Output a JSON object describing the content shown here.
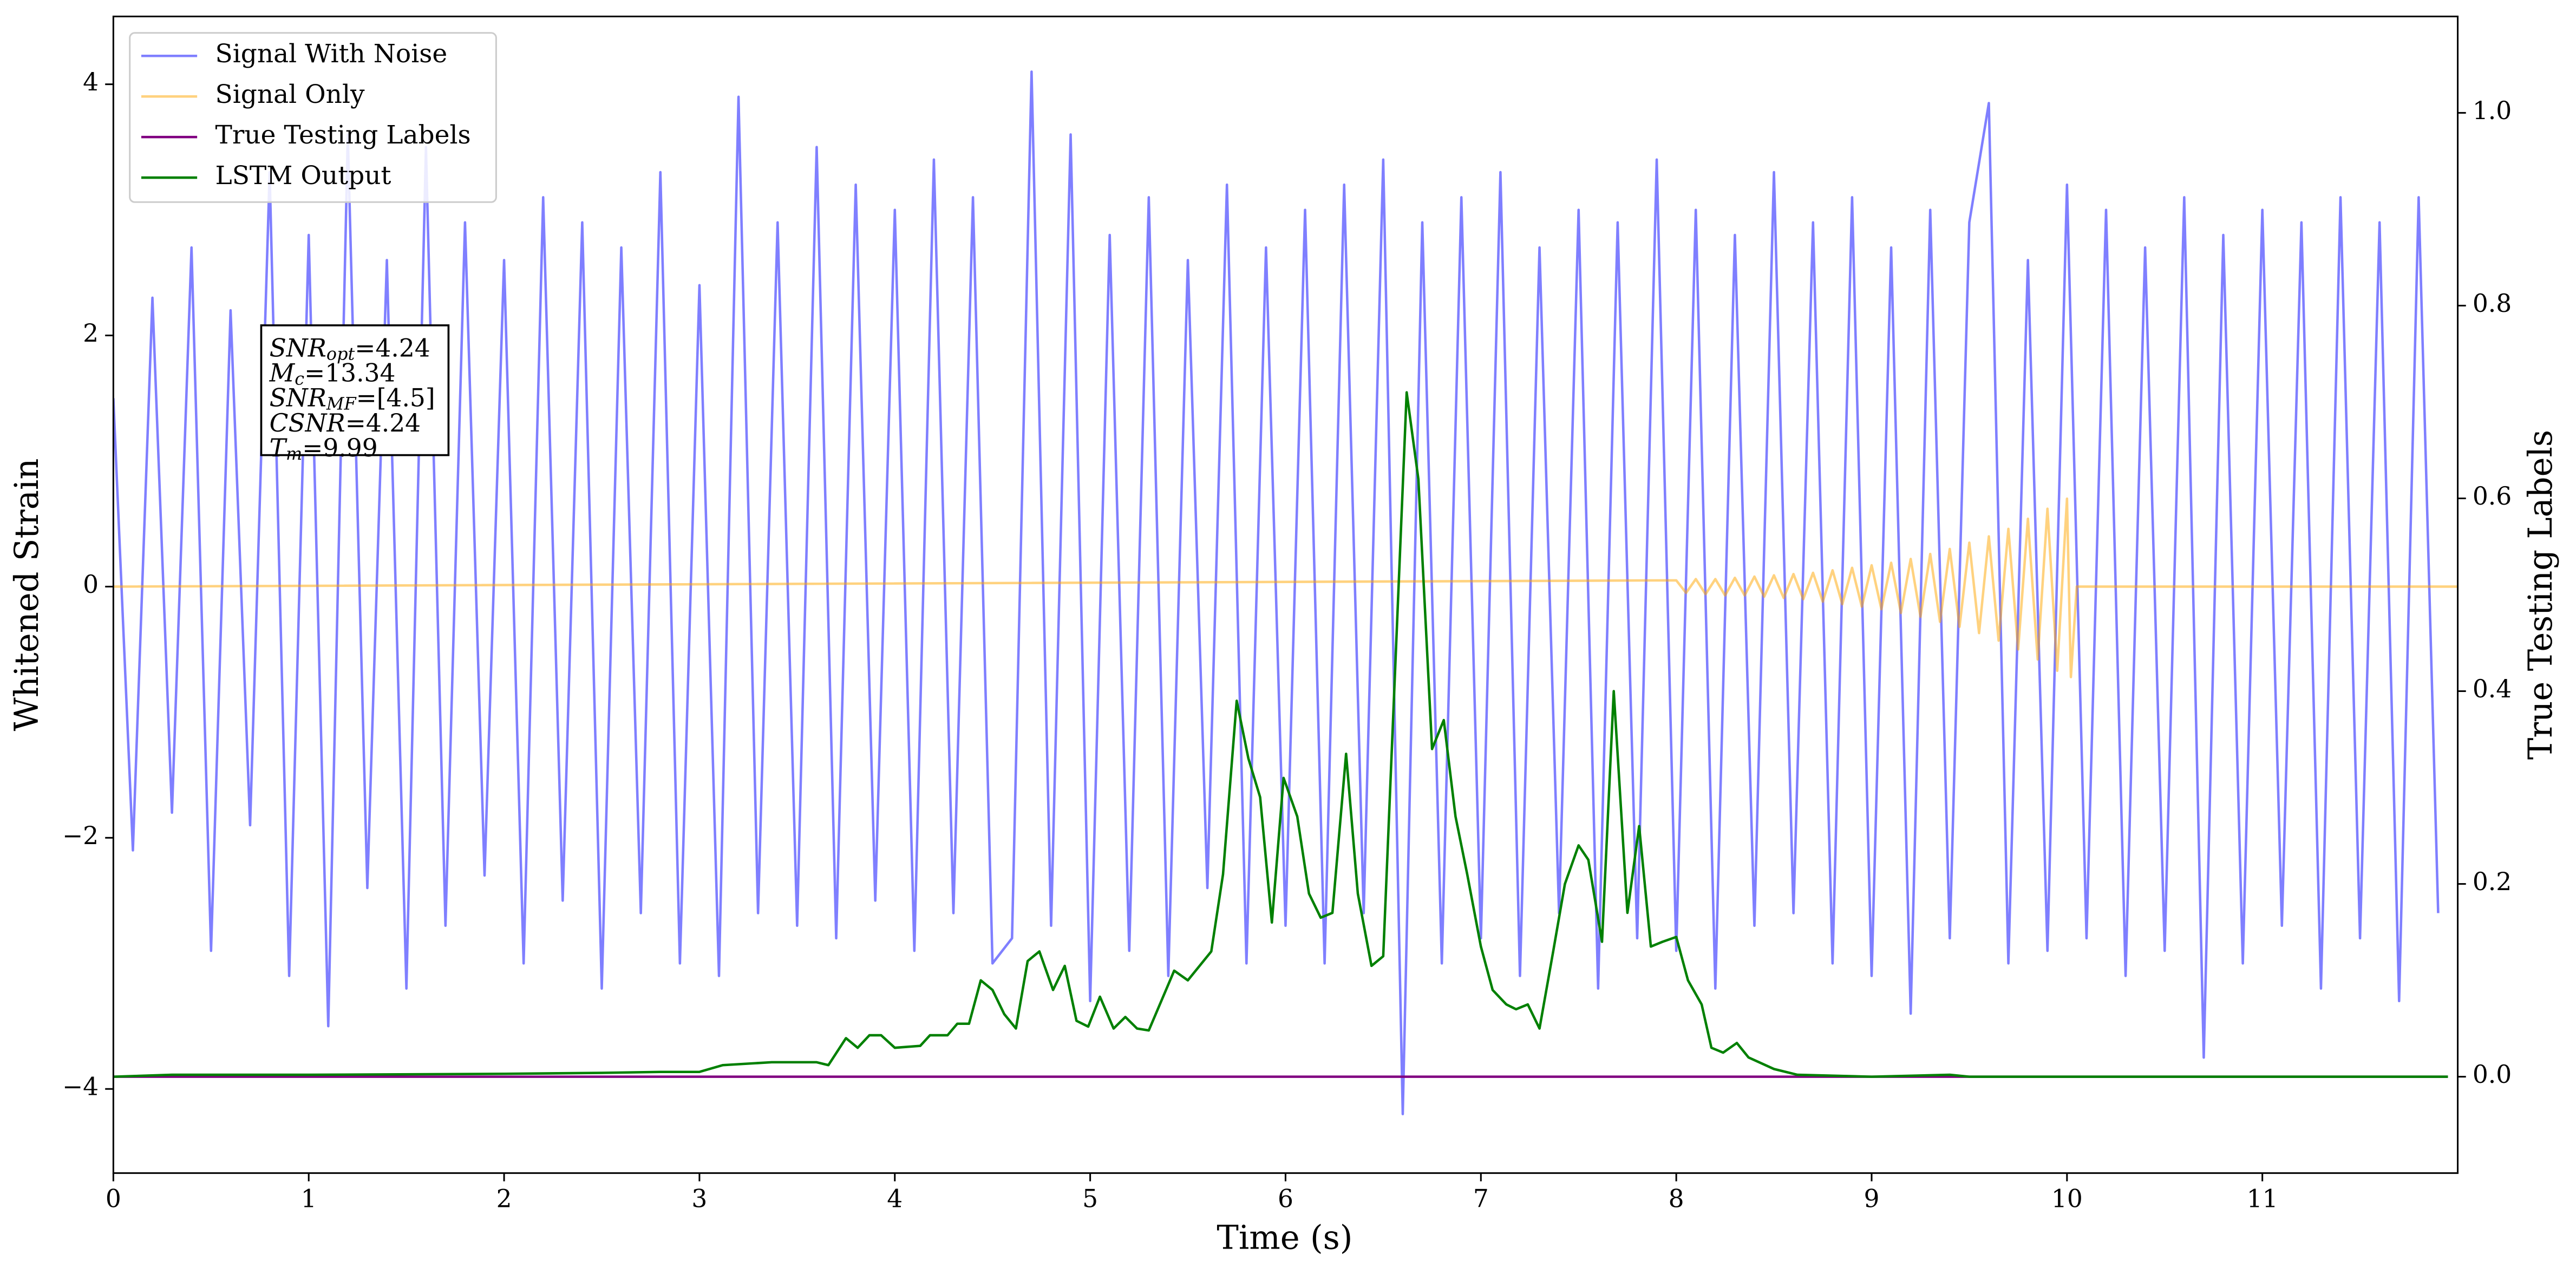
{
  "chart_data": {
    "type": "line",
    "xlabel": "Time (s)",
    "ylabel": "Whitened Strain",
    "y2label": "True Testing Labels",
    "xlim": [
      0,
      12
    ],
    "ylim": [
      -4.67,
      4.54
    ],
    "y2lim": [
      -0.1,
      1.1
    ],
    "xticks": [
      0,
      1,
      2,
      3,
      4,
      5,
      6,
      7,
      8,
      9,
      10,
      11
    ],
    "yticks": [
      {
        "value": -4,
        "label": "−4"
      },
      {
        "value": -2,
        "label": "−2"
      },
      0,
      2,
      4
    ],
    "y2ticks": [
      {
        "value": 0,
        "label": "0.0"
      },
      {
        "value": 0.2,
        "label": "0.2"
      },
      {
        "value": 0.4,
        "label": "0.4"
      },
      {
        "value": 0.6,
        "label": "0.6"
      },
      {
        "value": 0.8,
        "label": "0.8"
      },
      {
        "value": 1.0,
        "label": "1.0"
      }
    ],
    "legend": "upper left",
    "annotation": [
      {
        "symbol": "SNR",
        "sub": "opt",
        "text": "=4.24"
      },
      {
        "symbol": "M",
        "sub": "c",
        "text": "=13.34"
      },
      {
        "symbol": "SNR",
        "sub": "MF",
        "text": "=[4.5]"
      },
      {
        "symbol": "CSNR",
        "text": "=4.24"
      },
      {
        "symbol": "T",
        "sub": "m",
        "text": "=9.99"
      }
    ],
    "series": [
      {
        "name": "Signal With Noise",
        "color": "#0000ff",
        "alpha": 0.5,
        "x": [
          0.0,
          0.1,
          0.2,
          0.3,
          0.4,
          0.5,
          0.6,
          0.7,
          0.8,
          0.9,
          1.0,
          1.1,
          1.2,
          1.3,
          1.4,
          1.5,
          1.6,
          1.7,
          1.8,
          1.9,
          2.0,
          2.1,
          2.2,
          2.3,
          2.4,
          2.5,
          2.6,
          2.7,
          2.8,
          2.9,
          3.0,
          3.1,
          3.2,
          3.3,
          3.4,
          3.5,
          3.6,
          3.7,
          3.8,
          3.9,
          4.0,
          4.1,
          4.2,
          4.3,
          4.4,
          4.5,
          4.6,
          4.7,
          4.8,
          4.9,
          5.0,
          5.1,
          5.2,
          5.3,
          5.4,
          5.5,
          5.6,
          5.7,
          5.8,
          5.9,
          6.0,
          6.1,
          6.2,
          6.3,
          6.4,
          6.5,
          6.6,
          6.7,
          6.8,
          6.9,
          7.0,
          7.1,
          7.2,
          7.3,
          7.4,
          7.5,
          7.6,
          7.7,
          7.8,
          7.9,
          8.0,
          8.1,
          8.2,
          8.3,
          8.4,
          8.5,
          8.6,
          8.7,
          8.8,
          8.9,
          9.0,
          9.1,
          9.2,
          9.3,
          9.4,
          9.5,
          9.6,
          9.7,
          9.8,
          9.9,
          10.0,
          10.1,
          10.2,
          10.3,
          10.4,
          10.5,
          10.6,
          10.7,
          10.8,
          10.9,
          11.0,
          11.1,
          11.2,
          11.3,
          11.4,
          11.5,
          11.6,
          11.7,
          11.8,
          11.9
        ],
        "values": [
          1.5,
          -2.1,
          2.3,
          -1.8,
          2.7,
          -2.9,
          2.2,
          -1.9,
          3.3,
          -3.1,
          2.8,
          -3.5,
          3.6,
          -2.4,
          2.6,
          -3.2,
          3.5,
          -2.7,
          2.9,
          -2.3,
          2.6,
          -3.0,
          3.1,
          -2.5,
          2.9,
          -3.2,
          2.7,
          -2.6,
          3.3,
          -3.0,
          2.4,
          -3.1,
          3.9,
          -2.6,
          2.9,
          -2.7,
          3.5,
          -2.8,
          3.2,
          -2.5,
          3.0,
          -2.9,
          3.4,
          -2.6,
          3.1,
          -3.0,
          -2.8,
          4.1,
          -2.7,
          3.6,
          -3.3,
          2.8,
          -2.9,
          3.1,
          -3.1,
          2.6,
          -2.4,
          3.2,
          -3.0,
          2.7,
          -2.7,
          3.0,
          -3.0,
          3.2,
          -2.6,
          3.4,
          -4.2,
          2.9,
          -3.0,
          3.1,
          -2.8,
          3.3,
          -3.1,
          2.7,
          -2.6,
          3.0,
          -3.2,
          2.9,
          -2.8,
          3.4,
          -2.9,
          3.0,
          -3.2,
          2.8,
          -2.7,
          3.3,
          -2.6,
          2.9,
          -3.0,
          3.1,
          -3.1,
          2.7,
          -3.4,
          3.0,
          -2.8,
          2.9,
          3.85,
          -3.0,
          2.6,
          -2.9,
          3.2,
          -2.8,
          3.0,
          -3.1,
          2.7,
          -2.9,
          3.1,
          -3.75,
          2.8,
          -3.0,
          3.0,
          -2.7,
          2.9,
          -3.2,
          3.1,
          -2.8,
          2.9,
          -3.3,
          3.1,
          -2.6
        ]
      },
      {
        "name": "Signal Only",
        "color": "#ffa500",
        "alpha": 0.5,
        "x": [
          0,
          8.0,
          8.05,
          8.1,
          8.15,
          8.2,
          8.25,
          8.3,
          8.35,
          8.4,
          8.45,
          8.5,
          8.55,
          8.6,
          8.65,
          8.7,
          8.75,
          8.8,
          8.85,
          8.9,
          8.95,
          9.0,
          9.05,
          9.1,
          9.15,
          9.2,
          9.25,
          9.3,
          9.35,
          9.4,
          9.45,
          9.5,
          9.55,
          9.6,
          9.65,
          9.7,
          9.75,
          9.8,
          9.85,
          9.9,
          9.95,
          10.0,
          10.02,
          10.05,
          12
        ],
        "values": [
          0,
          0.05,
          -0.05,
          0.06,
          -0.06,
          0.06,
          -0.07,
          0.07,
          -0.07,
          0.08,
          -0.08,
          0.09,
          -0.09,
          0.1,
          -0.1,
          0.11,
          -0.12,
          0.13,
          -0.14,
          0.15,
          -0.16,
          0.17,
          -0.18,
          0.19,
          -0.21,
          0.22,
          -0.24,
          0.26,
          -0.28,
          0.3,
          -0.32,
          0.35,
          -0.37,
          0.4,
          -0.43,
          0.46,
          -0.5,
          0.54,
          -0.58,
          0.62,
          -0.67,
          0.7,
          -0.72,
          0,
          0
        ]
      },
      {
        "name": "True Testing Labels",
        "color": "#800080",
        "axis": "y2",
        "x": [
          0,
          11.95
        ],
        "values": [
          0,
          0
        ]
      },
      {
        "name": "LSTM Output",
        "color": "#008000",
        "axis": "y2",
        "x": [
          0,
          0.3,
          1.0,
          2.0,
          2.5,
          2.8,
          3.0,
          3.12,
          3.37,
          3.6,
          3.66,
          3.75,
          3.81,
          3.87,
          3.93,
          4.0,
          4.13,
          4.18,
          4.27,
          4.32,
          4.38,
          4.44,
          4.5,
          4.56,
          4.62,
          4.68,
          4.74,
          4.81,
          4.87,
          4.93,
          4.99,
          5.05,
          5.12,
          5.18,
          5.24,
          5.3,
          5.43,
          5.5,
          5.62,
          5.68,
          5.75,
          5.81,
          5.87,
          5.93,
          5.99,
          6.06,
          6.12,
          6.18,
          6.24,
          6.31,
          6.37,
          6.44,
          6.5,
          6.62,
          6.68,
          6.75,
          6.81,
          6.87,
          6.93,
          7.0,
          7.06,
          7.13,
          7.18,
          7.24,
          7.3,
          7.37,
          7.43,
          7.5,
          7.55,
          7.62,
          7.68,
          7.75,
          7.81,
          7.87,
          7.93,
          8.0,
          8.06,
          8.13,
          8.18,
          8.24,
          8.31,
          8.37,
          8.5,
          8.62,
          9.0,
          9.4,
          9.5,
          11.95
        ],
        "values": [
          0,
          0.002,
          0.002,
          0.003,
          0.004,
          0.005,
          0.005,
          0.012,
          0.015,
          0.015,
          0.012,
          0.04,
          0.03,
          0.043,
          0.043,
          0.03,
          0.032,
          0.043,
          0.043,
          0.055,
          0.055,
          0.1,
          0.09,
          0.065,
          0.05,
          0.12,
          0.13,
          0.09,
          0.115,
          0.058,
          0.052,
          0.083,
          0.05,
          0.062,
          0.05,
          0.048,
          0.11,
          0.1,
          0.13,
          0.21,
          0.39,
          0.33,
          0.29,
          0.16,
          0.31,
          0.27,
          0.19,
          0.165,
          0.17,
          0.335,
          0.19,
          0.115,
          0.125,
          0.71,
          0.62,
          0.34,
          0.37,
          0.27,
          0.21,
          0.135,
          0.09,
          0.075,
          0.07,
          0.075,
          0.05,
          0.13,
          0.2,
          0.24,
          0.225,
          0.14,
          0.4,
          0.17,
          0.26,
          0.135,
          0.14,
          0.145,
          0.1,
          0.075,
          0.03,
          0.025,
          0.035,
          0.02,
          0.008,
          0.002,
          0,
          0.002,
          0,
          0
        ]
      }
    ]
  }
}
